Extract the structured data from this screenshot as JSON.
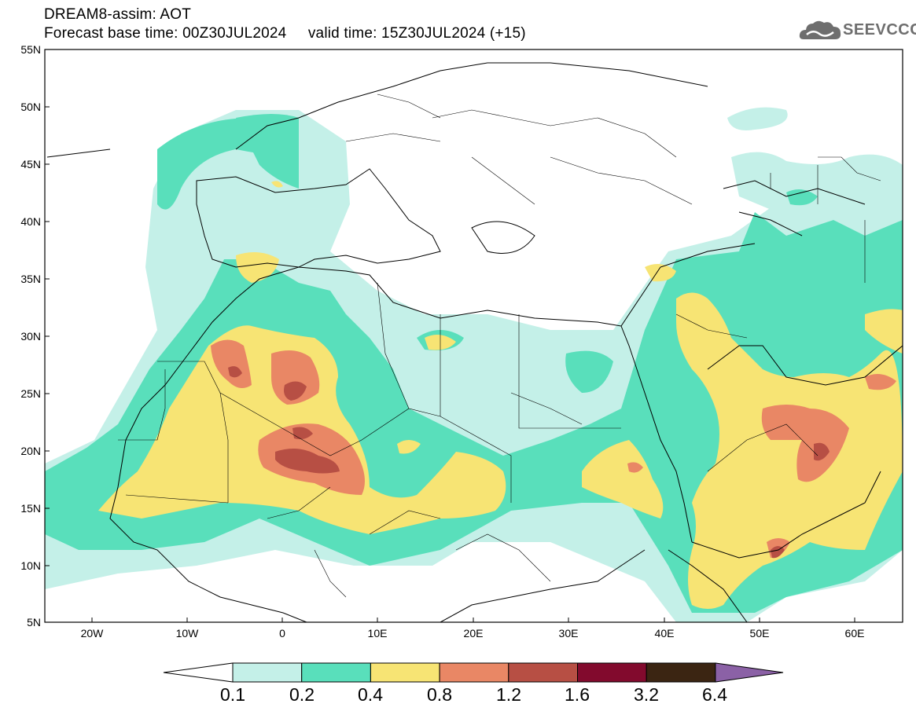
{
  "header": {
    "title": "DREAM8-assim: AOT",
    "subtitle": "Forecast base time: 00Z30JUL2024     valid time: 15Z30JUL2024 (+15)"
  },
  "logo": {
    "text": "SEEVCCC",
    "icon": "cloud-icon"
  },
  "map": {
    "lat_range": [
      5,
      55
    ],
    "lon_range": [
      -25,
      65
    ],
    "lat_ticks": [
      "55N",
      "50N",
      "45N",
      "40N",
      "35N",
      "30N",
      "25N",
      "20N",
      "15N",
      "10N",
      "5N"
    ],
    "lon_ticks": [
      "20W",
      "10W",
      "0",
      "10E",
      "20E",
      "30E",
      "40E",
      "50E",
      "60E"
    ],
    "variable": "AOT"
  },
  "colorbar": {
    "labels": [
      "0.1",
      "0.2",
      "0.4",
      "0.8",
      "1.2",
      "1.6",
      "3.2",
      "6.4"
    ],
    "colors": [
      "#ffffff",
      "#c4f0e8",
      "#59dfbb",
      "#f7e474",
      "#e98765",
      "#b74f44",
      "#820a2d",
      "#3b2512",
      "#8b61a6"
    ]
  },
  "palette": {
    "pale": "#c4f0e8",
    "green": "#59dfbb",
    "yellow": "#f7e474",
    "orange": "#e98765",
    "red": "#b74f44"
  }
}
